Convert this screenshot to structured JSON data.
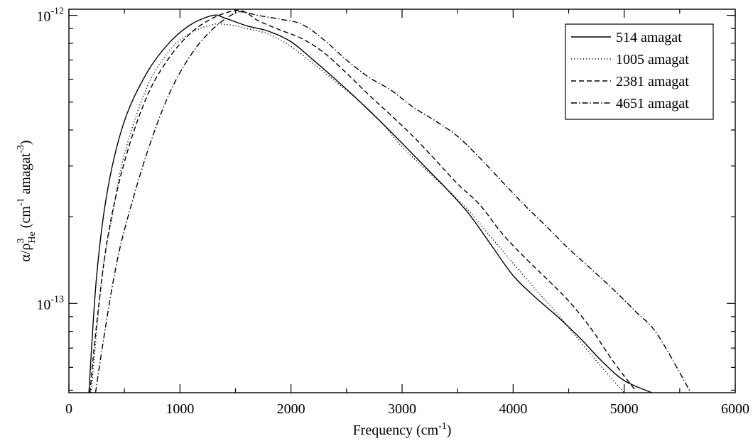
{
  "chart_data": {
    "type": "line",
    "xlabel": "Frequency (cm",
    "xlabel_sup": "-1",
    "xlabel_close": ")",
    "ylabel_parts": {
      "alpha_rho": "α/ρ",
      "sup3": "3",
      "sub_he": "He",
      "open": " (cm",
      "sup_m1": "-1",
      "amagat": " amagat",
      "sup_m3": "-3",
      "close": ")"
    },
    "y_scale": "log",
    "xlim": [
      0,
      6000
    ],
    "ylim": [
      4.9e-14,
      1.05e-12
    ],
    "x_ticks": [
      {
        "value": 0,
        "label": "0"
      },
      {
        "value": 1000,
        "label": "1000"
      },
      {
        "value": 2000,
        "label": "2000"
      },
      {
        "value": 3000,
        "label": "3000"
      },
      {
        "value": 4000,
        "label": "4000"
      },
      {
        "value": 5000,
        "label": "5000"
      },
      {
        "value": 6000,
        "label": "6000"
      }
    ],
    "y_major_ticks": [
      {
        "value": 1e-13,
        "base": "10",
        "exp": "-13"
      },
      {
        "value": 1e-12,
        "base": "10",
        "exp": "-12"
      }
    ],
    "legend_position": "top-right",
    "grid": false,
    "series": [
      {
        "name": "514 amagat",
        "style": "solid",
        "x": [
          180,
          250,
          350,
          500,
          700,
          900,
          1100,
          1300,
          1400,
          1600,
          1800,
          2000,
          2200,
          2400,
          2600,
          2800,
          3000,
          3200,
          3400,
          3600,
          3800,
          4000,
          4200,
          4400,
          4600,
          4800,
          5000,
          5250
        ],
        "y": [
          4.9e-14,
          1.25e-13,
          2.5e-13,
          4.3e-13,
          6.3e-13,
          8e-13,
          9.3e-13,
          1e-12,
          9.8e-13,
          9.2e-13,
          8.8e-13,
          8.1e-13,
          7e-13,
          6e-13,
          5.1e-13,
          4.3e-13,
          3.6e-13,
          3e-13,
          2.5e-13,
          2.05e-13,
          1.6e-13,
          1.25e-13,
          1.05e-13,
          9e-14,
          7.6e-14,
          6.3e-14,
          5.4e-14,
          4.9e-14
        ]
      },
      {
        "name": "1005 amagat",
        "style": "dotted",
        "x": [
          200,
          300,
          400,
          500,
          700,
          900,
          1100,
          1300,
          1400,
          1500,
          1600,
          1800,
          2000,
          2200,
          2400,
          2600,
          2800,
          3000,
          3200,
          3400,
          3600,
          3800,
          4000,
          4200,
          4400,
          4600,
          4800,
          5000
        ],
        "y": [
          4.9e-14,
          1.25e-13,
          2.1e-13,
          3.3e-13,
          5.6e-13,
          7.5e-13,
          8.7e-13,
          9.3e-13,
          9.3e-13,
          9.2e-13,
          9e-13,
          8.6e-13,
          7.8e-13,
          6.8e-13,
          5.9e-13,
          5.1e-13,
          4.3e-13,
          3.5e-13,
          2.95e-13,
          2.5e-13,
          2.1e-13,
          1.7e-13,
          1.38e-13,
          1.12e-13,
          9.2e-14,
          7.4e-14,
          6e-14,
          4.9e-14
        ]
      },
      {
        "name": "2381 amagat",
        "style": "dashed",
        "x": [
          190,
          250,
          350,
          500,
          700,
          900,
          1100,
          1300,
          1500,
          1600,
          1700,
          1900,
          2100,
          2300,
          2500,
          2700,
          2900,
          3100,
          3300,
          3500,
          3700,
          3900,
          4100,
          4300,
          4500,
          4700,
          4900,
          5100
        ],
        "y": [
          4.9e-14,
          8.5e-14,
          1.7e-13,
          3.1e-13,
          5.2e-13,
          7.1e-13,
          8.7e-13,
          9.8e-13,
          1.04e-12,
          1.02e-12,
          9.6e-13,
          8.9e-13,
          8.3e-13,
          7.4e-13,
          6.3e-13,
          5.3e-13,
          4.5e-13,
          3.8e-13,
          3.15e-13,
          2.6e-13,
          2.2e-13,
          1.75e-13,
          1.45e-13,
          1.22e-13,
          1.02e-13,
          8.2e-14,
          6.3e-14,
          5e-14
        ]
      },
      {
        "name": "4651 amagat",
        "style": "dashdot",
        "x": [
          240,
          300,
          400,
          500,
          700,
          900,
          1100,
          1300,
          1500,
          1600,
          1700,
          1900,
          2100,
          2300,
          2500,
          2700,
          2900,
          3100,
          3300,
          3500,
          3700,
          3900,
          4100,
          4300,
          4500,
          4700,
          4900,
          5100,
          5300,
          5600
        ],
        "y": [
          4.9e-14,
          7e-14,
          1.2e-13,
          1.8e-13,
          3.3e-13,
          5.3e-13,
          7.3e-13,
          9e-13,
          1.02e-12,
          1.02e-12,
          1e-12,
          9.7e-13,
          9.3e-13,
          8.2e-13,
          7e-13,
          6.1e-13,
          5.5e-13,
          4.8e-13,
          4.3e-13,
          3.8e-13,
          3.2e-13,
          2.65e-13,
          2.2e-13,
          1.85e-13,
          1.55e-13,
          1.32e-13,
          1.12e-13,
          9.4e-14,
          7.8e-14,
          4.9e-14
        ]
      }
    ]
  }
}
